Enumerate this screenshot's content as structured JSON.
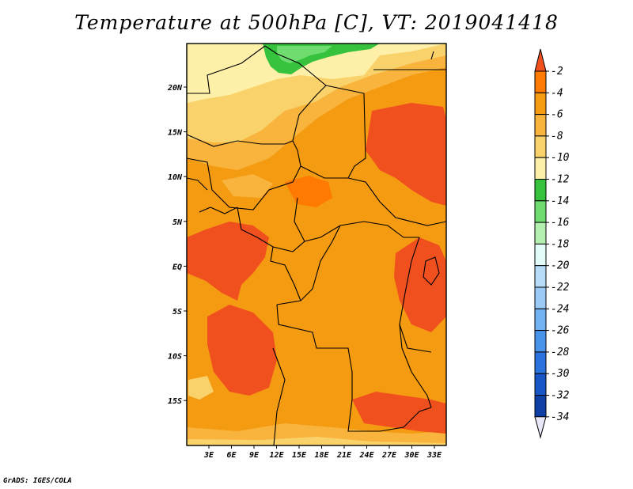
{
  "title": "Temperature at 500hPa [C], VT: 2019041418",
  "credit": "GrADS: IGES/COLA",
  "map": {
    "lat_ticks": [
      "20N",
      "15N",
      "10N",
      "5N",
      "EQ",
      "5S",
      "10S",
      "15S"
    ],
    "lon_ticks": [
      "3E",
      "6E",
      "9E",
      "12E",
      "15E",
      "18E",
      "21E",
      "24E",
      "27E",
      "30E",
      "33E"
    ]
  },
  "colorbar": {
    "labels": [
      "-2",
      "-4",
      "-6",
      "-8",
      "-10",
      "-12",
      "-14",
      "-16",
      "-18",
      "-20",
      "-22",
      "-24",
      "-26",
      "-28",
      "-30",
      "-32",
      "-34"
    ],
    "colors": [
      "#f0501e",
      "#ff7a00",
      "#f59b12",
      "#f8b43d",
      "#fad26b",
      "#fef0a8",
      "#36c23c",
      "#6fdc6f",
      "#b4f0b0",
      "#e1fcf8",
      "#b6dcf8",
      "#9ccaf7",
      "#73b2f2",
      "#4894eb",
      "#2a72de",
      "#1856c8",
      "#0e3fa4",
      "#101a6c"
    ]
  }
}
